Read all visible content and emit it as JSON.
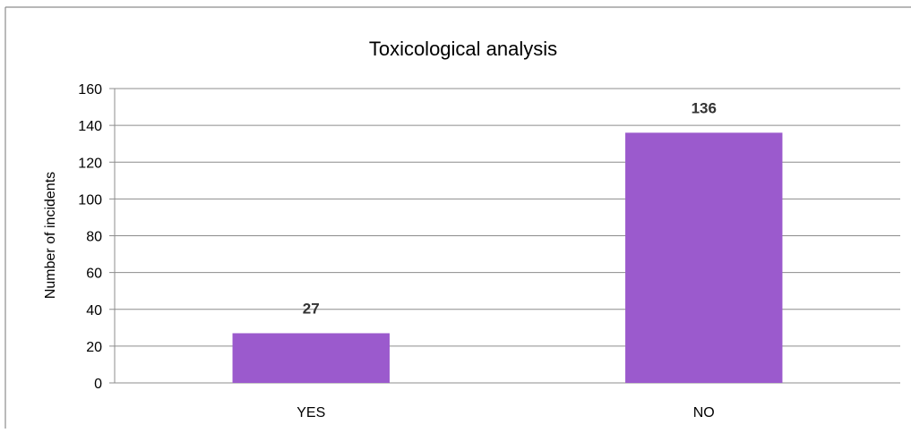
{
  "chart_data": {
    "type": "bar",
    "title": "Toxicological analysis",
    "xlabel": "",
    "ylabel": "Number of incidents",
    "categories": [
      "YES",
      "NO"
    ],
    "values": [
      27,
      136
    ],
    "ylim": [
      0,
      160
    ],
    "yticks": [
      0,
      20,
      40,
      60,
      80,
      100,
      120,
      140,
      160
    ],
    "grid": true,
    "legend": "none",
    "data_labels": true,
    "bar_color": "#9b5acd",
    "grid_color": "#8c8c8c",
    "frame_color": "#8c8c8c"
  }
}
